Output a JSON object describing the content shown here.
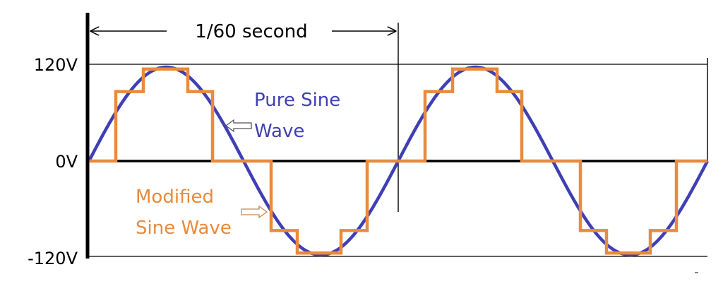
{
  "y_axis": {
    "ticks": [
      "120V",
      "0V",
      "-120V"
    ]
  },
  "period_label": "1/60 second",
  "labels": {
    "pure_sine": [
      "Pure Sine",
      "Wave"
    ],
    "modified_sine": [
      "Modified",
      "Sine Wave"
    ]
  },
  "colors": {
    "pure_sine": "#3f3fb5",
    "modified_sine": "#ea8a3c",
    "axis": "#000000"
  }
}
